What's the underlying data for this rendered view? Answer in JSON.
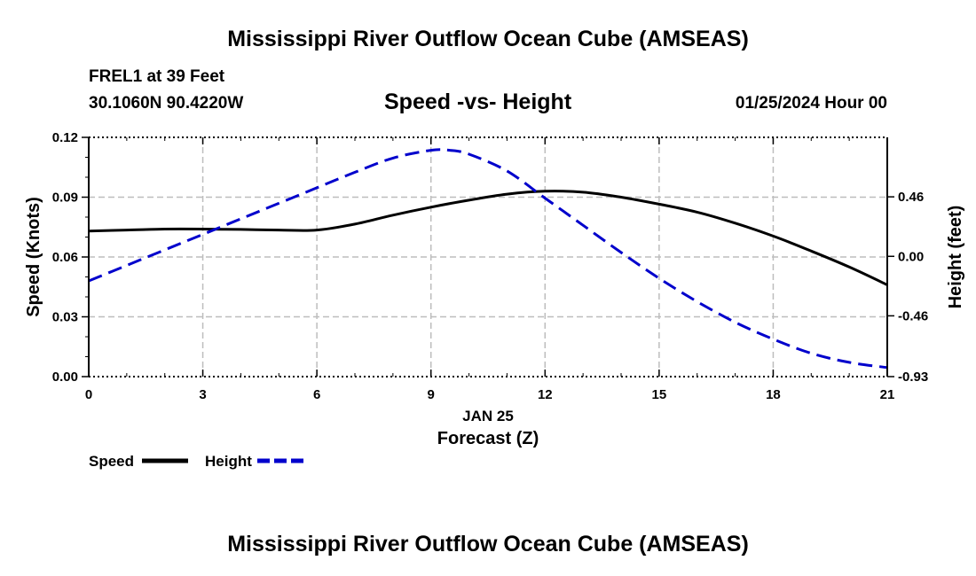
{
  "header": {
    "main_title": "Mississippi River Outflow Ocean Cube (AMSEAS)",
    "station": "FREL1 at 39 Feet",
    "coordinates": "30.1060N  90.4220W",
    "datetime": "01/25/2024 Hour 00",
    "footer_title": "Mississippi River Outflow Ocean Cube (AMSEAS)"
  },
  "colors": {
    "speed": "#000000",
    "height": "#0000cc",
    "grid": "#bdbdbd"
  },
  "chart_data": {
    "type": "line",
    "title": "Speed -vs- Height",
    "xlabel": "Forecast (Z)",
    "date_label": "JAN 25",
    "ylabel": "Speed (Knots)",
    "y2label": "Height (feet)",
    "xlim": [
      0,
      21
    ],
    "ylim": [
      0,
      0.12
    ],
    "y2lim": [
      -0.93,
      0.92
    ],
    "xticks": [
      0,
      3,
      6,
      9,
      12,
      15,
      18,
      21
    ],
    "xtick_labels": [
      "0",
      "3",
      "6",
      "9",
      "12",
      "15",
      "18",
      "21"
    ],
    "yticks": [
      0,
      0.03,
      0.06,
      0.09,
      0.12
    ],
    "ytick_labels": [
      "0.00",
      "0.03",
      "0.06",
      "0.09",
      "0.12"
    ],
    "y2ticks": [
      -0.93,
      -0.46,
      0,
      0.46
    ],
    "y2tick_labels": [
      "-0.93",
      "-0.46",
      "0.00",
      "0.46"
    ],
    "grid": true,
    "legend_position": "bottom-left",
    "series": [
      {
        "name": "Speed",
        "axis": "left",
        "style": "solid",
        "x": [
          0,
          1,
          2,
          3,
          4,
          5,
          6,
          7,
          8,
          9,
          10,
          11,
          12,
          13,
          14,
          15,
          16,
          17,
          18,
          19,
          20,
          21
        ],
        "values": [
          0.073,
          0.0735,
          0.074,
          0.074,
          0.0738,
          0.0735,
          0.0735,
          0.0765,
          0.081,
          0.085,
          0.0885,
          0.0915,
          0.093,
          0.0925,
          0.09,
          0.0865,
          0.0825,
          0.077,
          0.0705,
          0.063,
          0.055,
          0.046
        ]
      },
      {
        "name": "Height",
        "axis": "right",
        "style": "dashed",
        "x": [
          0,
          1,
          2,
          3,
          4,
          5,
          6,
          7,
          8,
          9,
          9.5,
          10,
          11,
          12,
          13,
          14,
          15,
          16,
          17,
          18,
          19,
          20,
          21
        ],
        "values": [
          -0.19,
          -0.07,
          0.05,
          0.17,
          0.29,
          0.41,
          0.53,
          0.65,
          0.76,
          0.82,
          0.82,
          0.79,
          0.66,
          0.45,
          0.24,
          0.03,
          -0.17,
          -0.35,
          -0.51,
          -0.64,
          -0.75,
          -0.82,
          -0.86
        ]
      }
    ]
  }
}
